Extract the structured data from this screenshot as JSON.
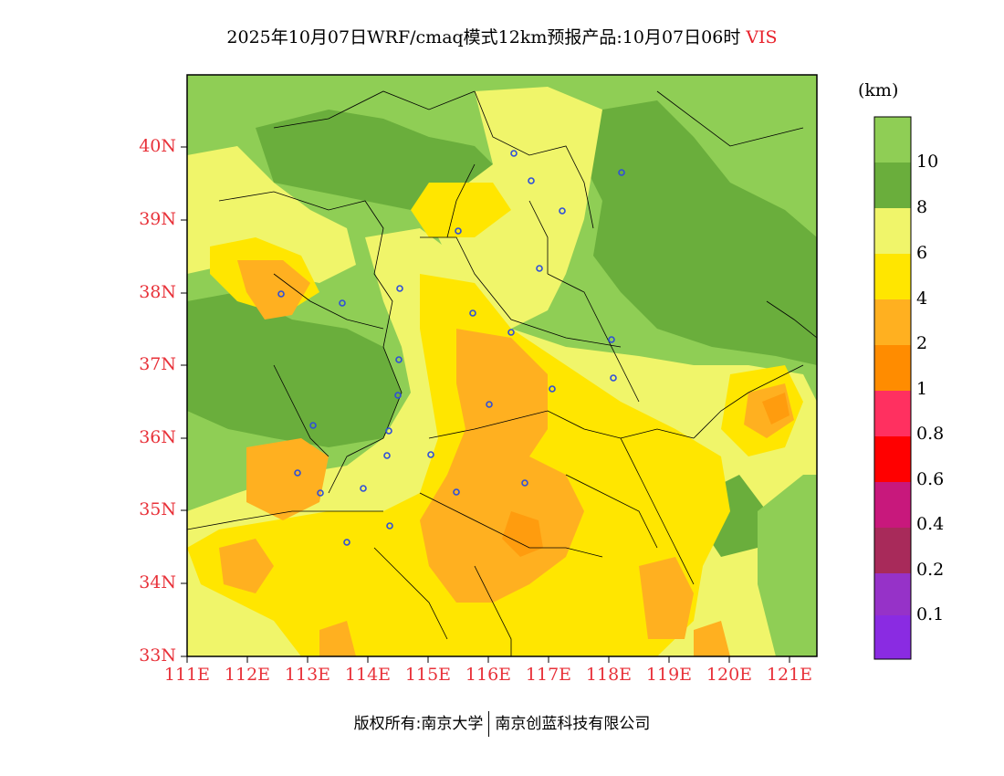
{
  "title": {
    "main": "2025年10月07日WRF/cmaq模式12km预报产品:10月07日06时",
    "variable": "VIS"
  },
  "units": "(km)",
  "footer": {
    "left": "版权所有:南京大学",
    "right": "南京创蓝科技有限公司"
  },
  "map": {
    "lat_range": [
      33,
      41
    ],
    "lon_range": [
      111,
      121.5
    ],
    "lat_labels": [
      "33N",
      "34N",
      "35N",
      "36N",
      "37N",
      "38N",
      "39N",
      "40N"
    ],
    "lon_labels": [
      "111E",
      "112E",
      "113E",
      "114E",
      "115E",
      "116E",
      "117E",
      "118E",
      "119E",
      "120E",
      "121E"
    ]
  },
  "colorbar": {
    "labels": [
      "10",
      "8",
      "6",
      "4",
      "2",
      "1",
      "0.8",
      "0.6",
      "0.4",
      "0.2",
      "0.1"
    ],
    "colors": [
      "#8fce55",
      "#6aae3c",
      "#f0f56a",
      "#ffe600",
      "#ffb020",
      "#ff8c00",
      "#ff3060",
      "#ff0000",
      "#c8187c",
      "#a82a5a",
      "#9632c8",
      "#8a2be2"
    ]
  }
}
